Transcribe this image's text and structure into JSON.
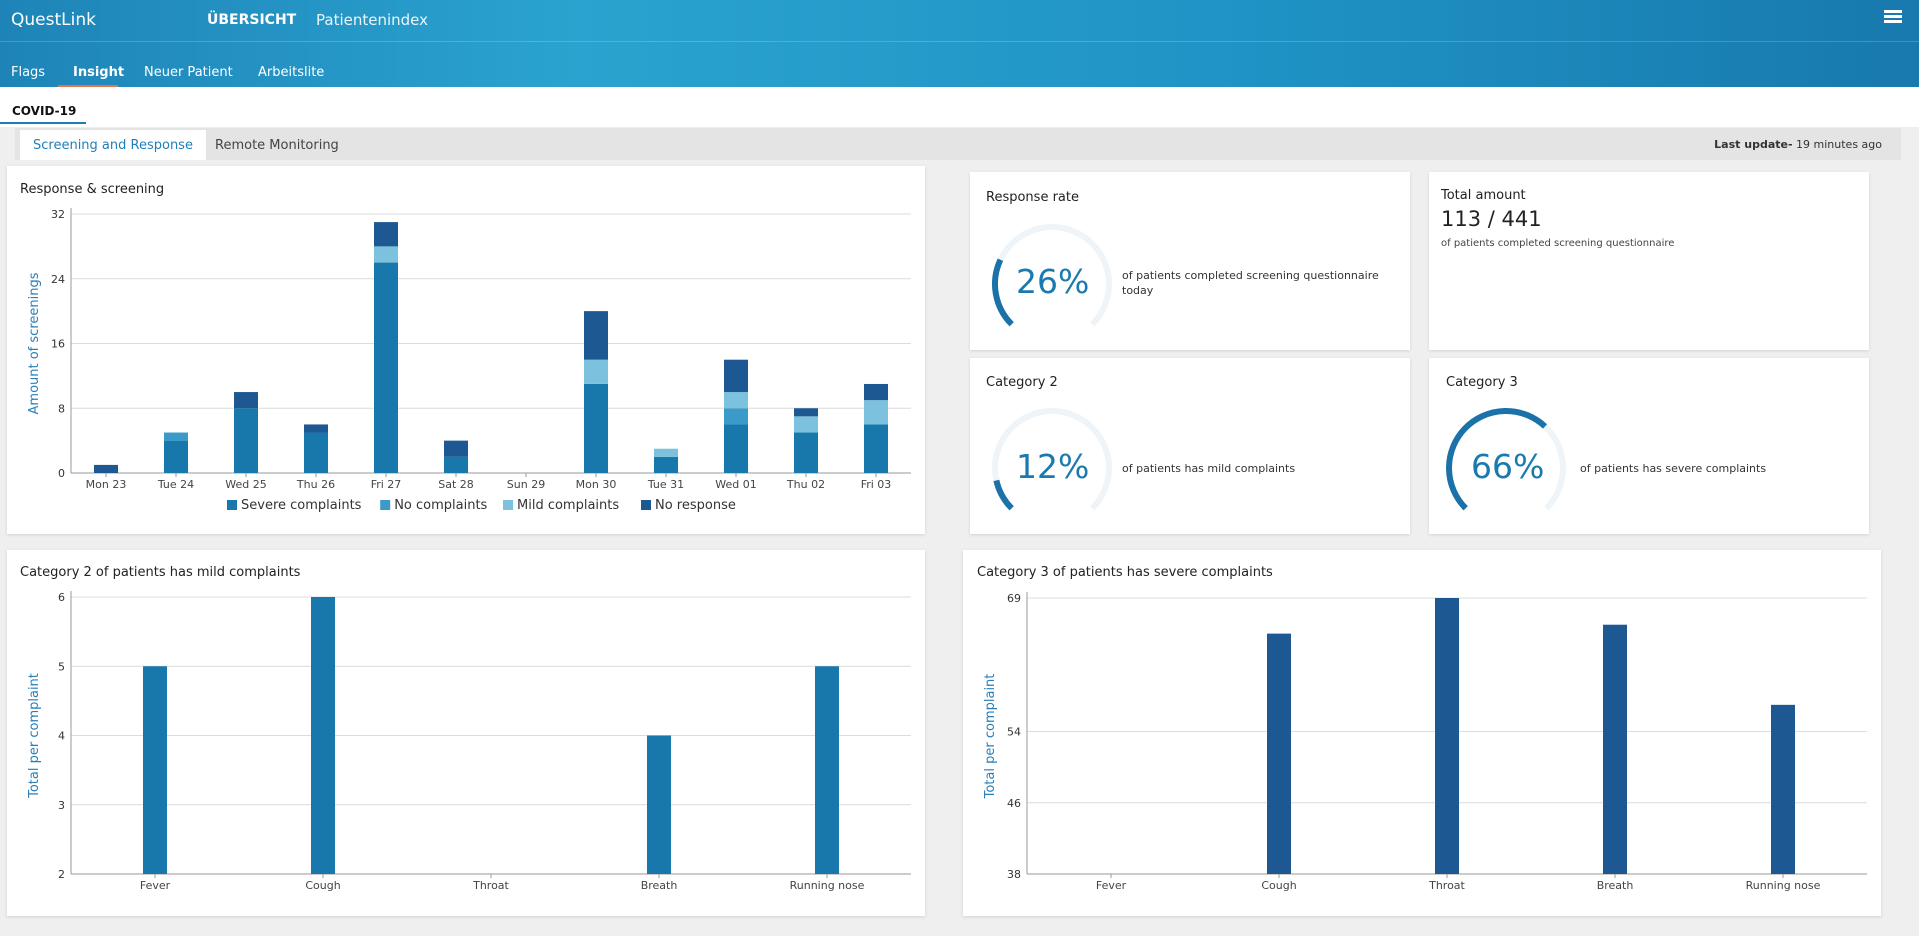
{
  "app": {
    "brand": "QuestLink",
    "nav_main": "ÜBERSICHT",
    "nav_index": "Patientenindex",
    "menu_icon": "hamburger-icon"
  },
  "tabs": [
    "Flags",
    "Insight",
    "Neuer Patient",
    "Arbeitslite"
  ],
  "active_tab": "Insight",
  "section": {
    "label": "COVID-19"
  },
  "subtabs": {
    "active": "Screening and Response",
    "other": "Remote Monitoring"
  },
  "last_update": {
    "label": "Last update-",
    "value": " 19 minutes ago"
  },
  "response_rate": {
    "title": "Response rate",
    "value": "26%",
    "desc": "of patients completed screening questionnaire today",
    "fraction": 0.26
  },
  "total_amount": {
    "title": "Total amount",
    "value": "113 / 441",
    "desc": "of patients completed screening questionnaire"
  },
  "category2": {
    "title": "Category 2",
    "value": "12%",
    "desc": "of patients has mild complaints",
    "fraction": 0.12
  },
  "category3": {
    "title": "Category 3",
    "value": "66%",
    "desc": "of patients has severe complaints",
    "fraction": 0.66
  },
  "colors": {
    "dark_blue": "#1d5892",
    "mid_blue": "#1877ab",
    "light_blue": "#3b9ac9",
    "pale_blue": "#7cc2de",
    "accent": "#e8734a"
  },
  "chart_data": [
    {
      "type": "bar",
      "title": "Response & screening",
      "ylabel": "Amount of screenings",
      "xlabel": "",
      "ylim": [
        0,
        32
      ],
      "yticks": [
        0,
        8,
        16,
        24,
        32
      ],
      "stacked": true,
      "categories": [
        "Mon 23",
        "Tue 24",
        "Wed 25",
        "Thu 26",
        "Fri 27",
        "Sat 28",
        "Sun 29",
        "Mon 30",
        "Tue 31",
        "Wed 01",
        "Thu 02",
        "Fri 03"
      ],
      "series": [
        {
          "name": "Severe complaints",
          "color": "#1877ab",
          "values": [
            0,
            4,
            8,
            5,
            26,
            2,
            0,
            11,
            2,
            6,
            5,
            6
          ]
        },
        {
          "name": "No complaints",
          "color": "#3b9ac9",
          "values": [
            0,
            1,
            0,
            0,
            0,
            0,
            0,
            0,
            0,
            2,
            0,
            0
          ]
        },
        {
          "name": "Mild complaints",
          "color": "#7cc2de",
          "values": [
            0,
            0,
            0,
            0,
            2,
            0,
            0,
            3,
            1,
            2,
            2,
            3
          ]
        },
        {
          "name": "No response",
          "color": "#1d5892",
          "values": [
            1,
            0,
            2,
            1,
            3,
            2,
            0,
            6,
            0,
            4,
            1,
            2
          ]
        }
      ],
      "legend": "bottom"
    },
    {
      "type": "bar",
      "title": "Category 2 of patients has mild complaints",
      "ylabel": "Total per complaint",
      "ylim": [
        2,
        6
      ],
      "yticks": [
        2,
        3,
        4,
        5,
        6
      ],
      "categories": [
        "Fever",
        "Cough",
        "Throat",
        "Breath",
        "Running nose"
      ],
      "series": [
        {
          "color": "#1877ab",
          "values": [
            5,
            6,
            2,
            4,
            5
          ]
        }
      ]
    },
    {
      "type": "bar",
      "title": "Category 3 of patients has severe complaints",
      "ylabel": "Total per complaint",
      "ylim": [
        38,
        69
      ],
      "yticks": [
        38,
        46,
        54,
        69
      ],
      "categories": [
        "Fever",
        "Cough",
        "Throat",
        "Breath",
        "Running nose"
      ],
      "series": [
        {
          "color": "#1d5892",
          "values": [
            38,
            65,
            69,
            66,
            57
          ]
        }
      ]
    }
  ]
}
